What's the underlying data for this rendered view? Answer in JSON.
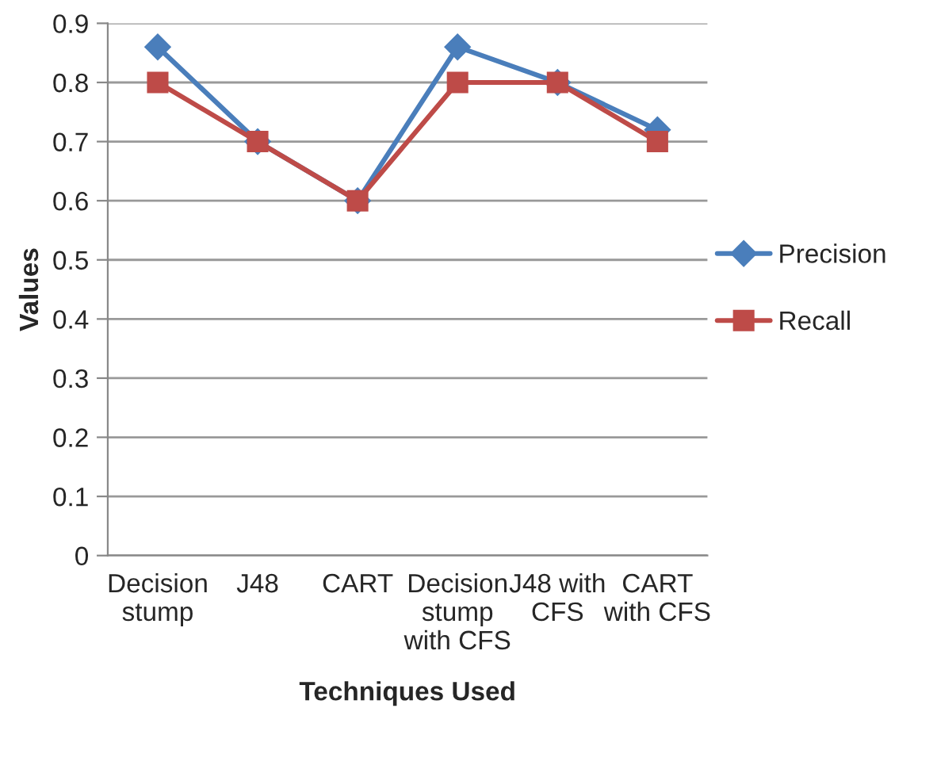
{
  "chart_data": {
    "type": "line",
    "xlabel": "Techniques Used",
    "ylabel": "Values",
    "categories": [
      "Decision\nstump",
      "J48",
      "CART",
      "Decision\nstump\nwith CFS",
      "J48 with\nCFS",
      "CART\nwith CFS"
    ],
    "series": [
      {
        "name": "Precision",
        "color": "#4a7ebb",
        "marker": "diamond",
        "values": [
          0.86,
          0.7,
          0.6,
          0.86,
          0.8,
          0.72
        ]
      },
      {
        "name": "Recall",
        "color": "#be4b48",
        "marker": "square",
        "values": [
          0.8,
          0.7,
          0.6,
          0.8,
          0.8,
          0.7
        ]
      }
    ],
    "ylim": [
      0,
      0.9
    ],
    "yticks": [
      0,
      0.1,
      0.2,
      0.3,
      0.4,
      0.5,
      0.6,
      0.7,
      0.8,
      0.9
    ],
    "grid": "y",
    "legend": "right",
    "line_style": "solid"
  }
}
